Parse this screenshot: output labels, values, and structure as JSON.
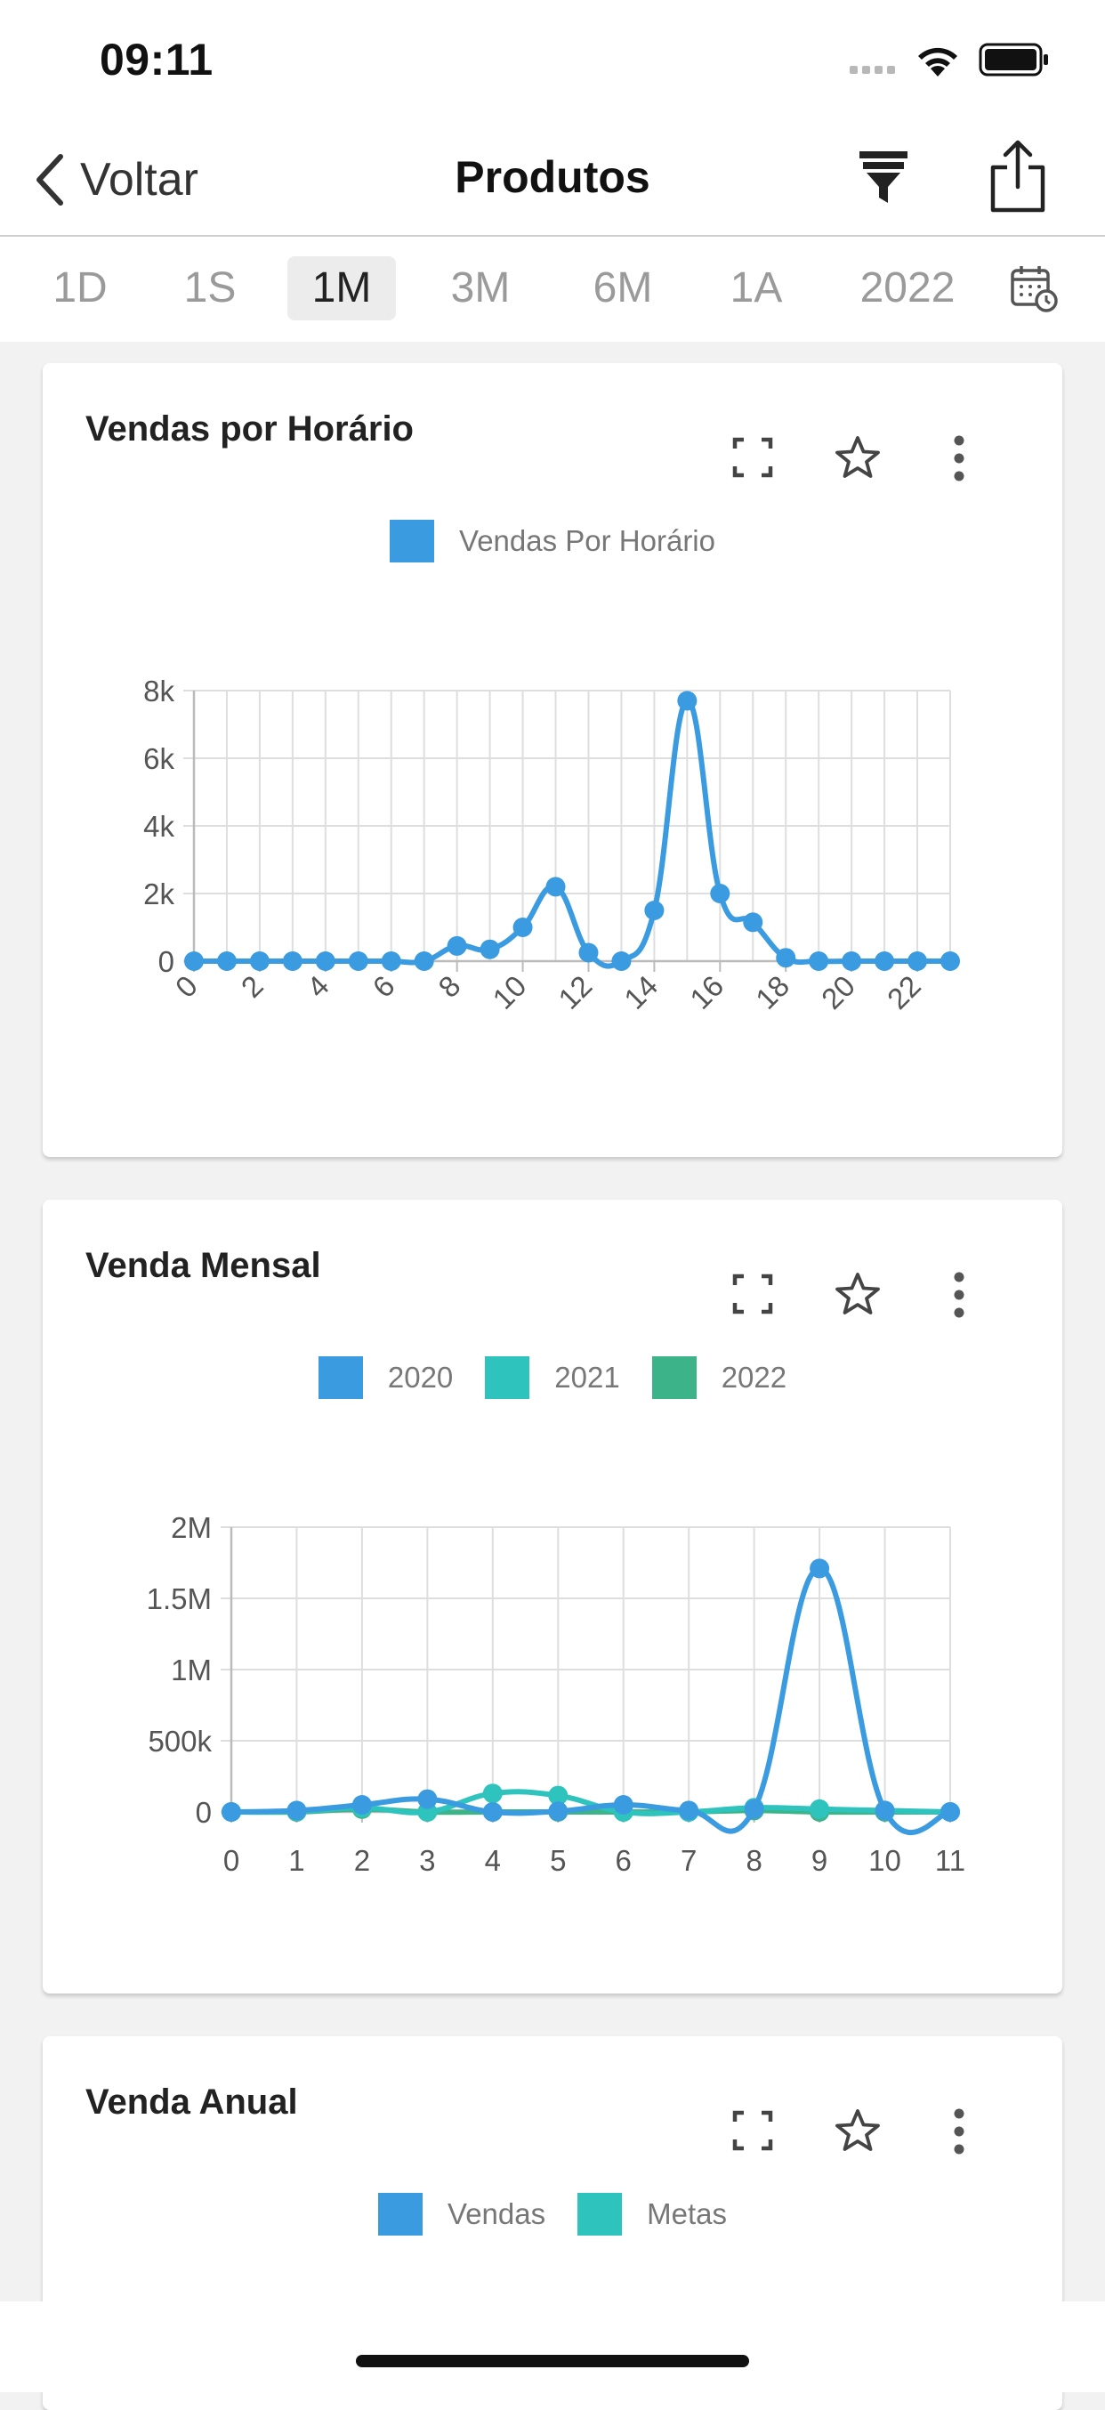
{
  "status": {
    "time": "09:11"
  },
  "nav": {
    "back_label": "Voltar",
    "title": "Produtos"
  },
  "periods": [
    "1D",
    "1S",
    "1M",
    "3M",
    "6M",
    "1A",
    "2022"
  ],
  "active_period": "1M",
  "colors": {
    "blue": "#3b9be0",
    "teal": "#2ec4bd",
    "green": "#3db389"
  },
  "cards": [
    {
      "title": "Vendas por Horário",
      "legend": [
        "Vendas Por Horário"
      ],
      "y_ticks": [
        "0",
        "2k",
        "4k",
        "6k",
        "8k"
      ],
      "x_ticks": [
        "0",
        "2",
        "4",
        "6",
        "8",
        "10",
        "12",
        "14",
        "16",
        "18",
        "20",
        "22"
      ]
    },
    {
      "title": "Venda Mensal",
      "legend": [
        "2020",
        "2021",
        "2022"
      ],
      "y_ticks": [
        "0",
        "500k",
        "1M",
        "1.5M",
        "2M"
      ],
      "x_ticks": [
        "0",
        "1",
        "2",
        "3",
        "4",
        "5",
        "6",
        "7",
        "8",
        "9",
        "10",
        "11"
      ]
    },
    {
      "title": "Venda Anual",
      "legend": [
        "Vendas",
        "Metas"
      ]
    }
  ],
  "chart_data": [
    {
      "type": "line",
      "x": [
        0,
        1,
        2,
        3,
        4,
        5,
        6,
        7,
        8,
        9,
        10,
        11,
        12,
        13,
        14,
        15,
        16,
        17,
        18,
        19,
        20,
        21,
        22,
        23
      ],
      "series": [
        {
          "name": "Vendas Por Horário",
          "color": "#3b9be0",
          "values": [
            0,
            0,
            0,
            0,
            0,
            0,
            0,
            0,
            450,
            350,
            1000,
            2200,
            250,
            0,
            1500,
            7700,
            2000,
            1150,
            100,
            0,
            0,
            0,
            0,
            0
          ]
        }
      ],
      "ylim": [
        0,
        8000
      ],
      "grid": true,
      "legend_position": "top-center"
    },
    {
      "type": "line",
      "x": [
        0,
        1,
        2,
        3,
        4,
        5,
        6,
        7,
        8,
        9,
        10,
        11
      ],
      "series": [
        {
          "name": "2020",
          "color": "#3b9be0",
          "values": [
            0,
            10000,
            50000,
            90000,
            0,
            5000,
            50000,
            10000,
            20000,
            1710000,
            10000,
            0
          ]
        },
        {
          "name": "2021",
          "color": "#2ec4bd",
          "values": [
            0,
            5000,
            30000,
            0,
            130000,
            115000,
            0,
            0,
            30000,
            20000,
            10000,
            0
          ]
        },
        {
          "name": "2022",
          "color": "#3db389",
          "values": [
            0,
            0,
            20000,
            0,
            0,
            0,
            0,
            0,
            10000,
            0,
            0,
            0
          ]
        }
      ],
      "ylim": [
        0,
        2000000
      ],
      "grid": true,
      "legend_position": "top-center"
    }
  ]
}
